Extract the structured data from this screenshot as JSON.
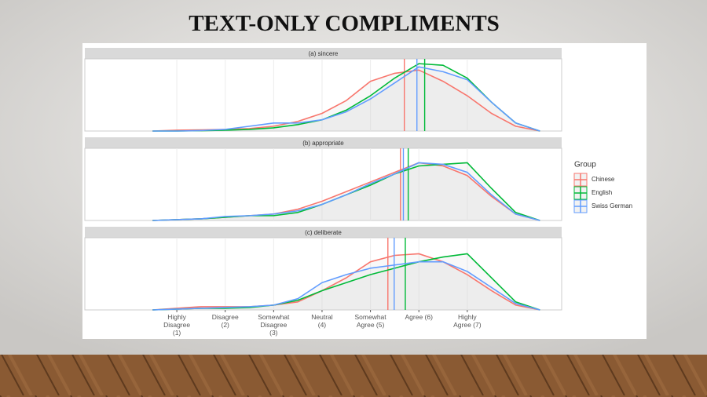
{
  "title": "TEXT-ONLY COMPLIMENTS",
  "chart_data": [
    {
      "type": "density",
      "title": "(a)  sincere",
      "x": [
        0.5,
        1,
        1.5,
        2,
        2.5,
        3,
        3.5,
        4,
        4.5,
        5,
        5.5,
        6,
        6.5,
        7,
        7.5,
        8,
        8.5
      ],
      "xlim": [
        -0.9,
        8.95
      ],
      "ylim": [
        0,
        0.45
      ],
      "legend_title": "Group",
      "series": [
        {
          "name": "Chinese",
          "color": "#f8766d",
          "mean": 5.7,
          "values": [
            0,
            0.005,
            0.007,
            0.01,
            0.015,
            0.03,
            0.06,
            0.11,
            0.19,
            0.31,
            0.36,
            0.38,
            0.31,
            0.22,
            0.11,
            0.03,
            0
          ]
        },
        {
          "name": "English",
          "color": "#00ba38",
          "mean": 6.12,
          "values": [
            0,
            0,
            0.002,
            0.005,
            0.01,
            0.02,
            0.04,
            0.07,
            0.13,
            0.22,
            0.33,
            0.42,
            0.41,
            0.33,
            0.18,
            0.05,
            0
          ]
        },
        {
          "name": "Swiss German",
          "color": "#619cff",
          "mean": 5.96,
          "values": [
            0,
            0,
            0.003,
            0.01,
            0.03,
            0.05,
            0.05,
            0.07,
            0.12,
            0.2,
            0.3,
            0.4,
            0.37,
            0.32,
            0.18,
            0.05,
            0
          ]
        }
      ]
    },
    {
      "type": "density",
      "title": "(b)  appropriate",
      "x": [
        0.5,
        1,
        1.5,
        2,
        2.5,
        3,
        3.5,
        4,
        4.5,
        5,
        5.5,
        6,
        6.5,
        7,
        7.5,
        8,
        8.5
      ],
      "xlim": [
        -0.9,
        8.95
      ],
      "ylim": [
        0,
        0.45
      ],
      "series": [
        {
          "color": "#f8766d",
          "mean": 5.62,
          "values": [
            0,
            0.005,
            0.01,
            0.02,
            0.03,
            0.04,
            0.07,
            0.12,
            0.18,
            0.24,
            0.3,
            0.36,
            0.34,
            0.28,
            0.15,
            0.04,
            0
          ]
        },
        {
          "color": "#00ba38",
          "mean": 5.78,
          "values": [
            0,
            0.005,
            0.01,
            0.02,
            0.03,
            0.03,
            0.05,
            0.1,
            0.16,
            0.22,
            0.29,
            0.34,
            0.35,
            0.36,
            0.2,
            0.05,
            0
          ]
        },
        {
          "color": "#619cff",
          "mean": 5.68,
          "values": [
            0,
            0.005,
            0.01,
            0.025,
            0.03,
            0.04,
            0.06,
            0.1,
            0.16,
            0.23,
            0.29,
            0.36,
            0.35,
            0.3,
            0.16,
            0.04,
            0
          ]
        }
      ]
    },
    {
      "type": "density",
      "title": "(c)  deliberate",
      "x": [
        0.5,
        1,
        1.5,
        2,
        2.5,
        3,
        3.5,
        4,
        4.5,
        5,
        5.5,
        6,
        6.5,
        7,
        7.5,
        8,
        8.5
      ],
      "xlim": [
        -0.9,
        8.95
      ],
      "ylim": [
        0,
        0.45
      ],
      "xticks": [
        {
          "value": 1,
          "label": "Highly\nDisagree\n(1)"
        },
        {
          "value": 2,
          "label": "Disagree\n(2)"
        },
        {
          "value": 3,
          "label": "Somewhat\nDisagree\n(3)"
        },
        {
          "value": 4,
          "label": "Neutral\n(4)"
        },
        {
          "value": 5,
          "label": "Somewhat\nAgree (5)"
        },
        {
          "value": 6,
          "label": "Agree (6)"
        },
        {
          "value": 7,
          "label": "Highly\nAgree (7)"
        }
      ],
      "series": [
        {
          "color": "#f8766d",
          "mean": 5.36,
          "values": [
            0,
            0.01,
            0.02,
            0.02,
            0.02,
            0.03,
            0.05,
            0.12,
            0.2,
            0.3,
            0.34,
            0.35,
            0.3,
            0.22,
            0.12,
            0.03,
            0
          ]
        },
        {
          "color": "#00ba38",
          "mean": 5.72,
          "values": [
            0,
            0.005,
            0.01,
            0.01,
            0.015,
            0.03,
            0.06,
            0.12,
            0.17,
            0.22,
            0.26,
            0.3,
            0.33,
            0.35,
            0.2,
            0.05,
            0
          ]
        },
        {
          "color": "#619cff",
          "mean": 5.49,
          "values": [
            0,
            0.005,
            0.01,
            0.015,
            0.02,
            0.03,
            0.07,
            0.17,
            0.22,
            0.26,
            0.28,
            0.3,
            0.3,
            0.24,
            0.14,
            0.04,
            0
          ]
        }
      ]
    }
  ]
}
